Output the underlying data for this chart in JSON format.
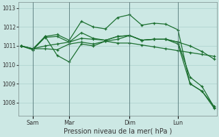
{
  "bg_color": "#cce8e4",
  "grid_color": "#aad0cc",
  "line_color": "#1a6e2e",
  "xlabel": "Pression niveau de la mer( hPa )",
  "ylim": [
    1007.3,
    1013.3
  ],
  "yticks": [
    1008,
    1009,
    1010,
    1011,
    1012,
    1013
  ],
  "xlim": [
    -0.2,
    16.2
  ],
  "vlines_x": [
    1.0,
    4.0,
    9.0,
    13.0
  ],
  "xtick_positions": [
    1.0,
    4.0,
    9.0,
    13.0
  ],
  "xtick_labels": [
    "Sam",
    "Mar",
    "Dim",
    "Lun"
  ],
  "s1_x": [
    0,
    1,
    2,
    3,
    4,
    5,
    6,
    7,
    8,
    9,
    10,
    11,
    12,
    13,
    14,
    15,
    16
  ],
  "s1_y": [
    1011.0,
    1010.8,
    1011.5,
    1011.6,
    1011.3,
    1012.3,
    1012.0,
    1011.9,
    1012.5,
    1012.65,
    1012.1,
    1012.2,
    1012.15,
    1011.85,
    1009.0,
    1008.6,
    1007.8
  ],
  "s2_x": [
    0,
    1,
    2,
    3,
    4,
    5,
    6,
    7,
    8,
    9,
    10,
    11,
    12,
    13,
    14,
    15,
    16
  ],
  "s2_y": [
    1011.0,
    1010.85,
    1011.0,
    1011.1,
    1011.2,
    1011.4,
    1011.35,
    1011.3,
    1011.5,
    1011.55,
    1011.3,
    1011.35,
    1011.35,
    1011.2,
    1011.0,
    1010.7,
    1010.3
  ],
  "s3_x": [
    0,
    1,
    2,
    3,
    4,
    5,
    6,
    7,
    8,
    9,
    10,
    11,
    12,
    13,
    14,
    15,
    16
  ],
  "s3_y": [
    1011.0,
    1010.85,
    1010.85,
    1010.8,
    1011.1,
    1011.2,
    1011.1,
    1011.25,
    1011.15,
    1011.15,
    1011.05,
    1010.95,
    1010.85,
    1010.75,
    1010.65,
    1010.55,
    1010.45
  ],
  "s4_x": [
    0,
    1,
    2,
    3,
    4,
    5,
    6,
    7,
    8,
    9,
    10,
    11,
    12,
    13,
    14,
    15,
    16
  ],
  "s4_y": [
    1011.0,
    1010.85,
    1011.5,
    1010.5,
    1010.15,
    1011.1,
    1011.0,
    1011.25,
    1011.35,
    1011.55,
    1011.3,
    1011.35,
    1011.35,
    1011.1,
    1009.0,
    1008.6,
    1007.7
  ],
  "s5_x": [
    0,
    1,
    2,
    3,
    4,
    5,
    6,
    7,
    8,
    9,
    10,
    11,
    12,
    13,
    14,
    15,
    16
  ],
  "s5_y": [
    1011.0,
    1010.8,
    1011.45,
    1011.5,
    1011.2,
    1011.7,
    1011.4,
    1011.3,
    1011.5,
    1011.55,
    1011.3,
    1011.35,
    1011.35,
    1011.2,
    1009.35,
    1008.85,
    1007.75
  ]
}
